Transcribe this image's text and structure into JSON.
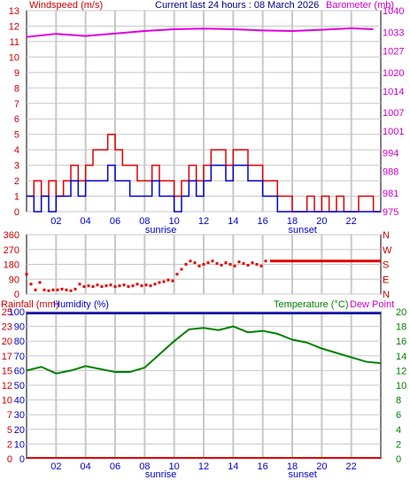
{
  "header": {
    "left_label": "Windspeed (m/s)",
    "center_label": "Current last 24 hours : 08 March 2026",
    "right_label": "Barometer (mb)"
  },
  "colors": {
    "wind_gust": "#e00000",
    "wind_avg": "#0000cc",
    "barometer": "#e000e0",
    "direction": "#e00000",
    "rain": "#e00000",
    "humidity": "#0000a0",
    "temperature": "#008000",
    "dewpoint": "#e000e0",
    "grid": "#c8c8c8",
    "blue_text": "#0000cc",
    "magenta_text": "#cc00cc",
    "green_text": "#008000",
    "red_text": "#cc0000"
  },
  "x_axis": {
    "range": [
      0,
      24
    ],
    "ticks": [
      2,
      4,
      6,
      8,
      10,
      12,
      14,
      16,
      18,
      20,
      22
    ],
    "tick_labels": [
      "02",
      "04",
      "06",
      "08",
      "10",
      "12",
      "14",
      "16",
      "18",
      "20",
      "22"
    ],
    "sunrise_label": "sunrise",
    "sunset_label": "sunset",
    "sunrise_hour": 9.1,
    "sunset_hour": 18.7
  },
  "chart_data": [
    {
      "type": "line",
      "panel": "wind-barometer",
      "left_axis": {
        "ylim": [
          0,
          13
        ],
        "ticks": [
          "0",
          "1",
          "2",
          "3",
          "4",
          "5",
          "6",
          "7",
          "8",
          "9",
          "10",
          "11",
          "12",
          "13"
        ]
      },
      "right_axis": {
        "ylim": [
          975,
          1040
        ],
        "ticks": [
          "975",
          "981",
          "988",
          "994",
          "1001",
          "1007",
          "1014",
          "1020",
          "1027",
          "1033",
          "1040"
        ]
      },
      "series": [
        {
          "name": "Windspeed",
          "style": "gust",
          "x": [
            0,
            0.5,
            1,
            1.5,
            2,
            2.5,
            3,
            3.5,
            4,
            4.5,
            5,
            5.5,
            6,
            6.5,
            7,
            7.5,
            8,
            8.5,
            9,
            9.5,
            10,
            10.5,
            11,
            11.5,
            12,
            12.5,
            13,
            13.5,
            14,
            14.5,
            15,
            15.5,
            16,
            16.5,
            17,
            17.5,
            18,
            18.5,
            19,
            19.5,
            20,
            20.5,
            21,
            21.5,
            22,
            22.5,
            23,
            23.5
          ],
          "values": [
            1,
            2,
            1,
            2,
            1,
            2,
            3,
            2,
            3,
            4,
            4,
            5,
            4,
            3,
            3,
            2,
            2,
            3,
            2,
            2,
            1,
            2,
            3,
            2,
            3,
            4,
            4,
            3,
            4,
            4,
            3,
            3,
            2,
            2,
            1,
            1,
            0,
            0,
            1,
            0,
            1,
            0,
            1,
            0,
            0,
            1,
            1,
            0
          ]
        },
        {
          "name": "Windspeed",
          "style": "average",
          "x": [
            0,
            0.5,
            1,
            1.5,
            2,
            2.5,
            3,
            3.5,
            4,
            4.5,
            5,
            5.5,
            6,
            6.5,
            7,
            7.5,
            8,
            8.5,
            9,
            9.5,
            10,
            10.5,
            11,
            11.5,
            12,
            12.5,
            13,
            13.5,
            14,
            14.5,
            15,
            15.5,
            16,
            16.5,
            17,
            17.5,
            18,
            18.5,
            19,
            19.5,
            20,
            20.5,
            21,
            21.5,
            22,
            22.5,
            23,
            23.5
          ],
          "values": [
            1,
            0,
            1,
            0,
            1,
            1,
            2,
            1,
            2,
            2,
            2,
            3,
            2,
            2,
            1,
            1,
            1,
            2,
            1,
            1,
            0,
            1,
            2,
            1,
            2,
            3,
            3,
            2,
            3,
            3,
            2,
            2,
            1,
            1,
            0,
            0,
            0,
            0,
            0,
            0,
            0,
            0,
            0,
            0,
            0,
            0,
            0,
            0
          ]
        },
        {
          "name": "Barometer",
          "x": [
            0,
            2,
            4,
            6,
            8,
            10,
            12,
            14,
            16,
            18,
            20,
            22,
            23.5
          ],
          "values": [
            1031.5,
            1032.5,
            1031.8,
            1032.6,
            1033.4,
            1034.0,
            1034.2,
            1034.0,
            1033.6,
            1033.4,
            1033.8,
            1034.3,
            1034.0
          ]
        }
      ]
    },
    {
      "type": "scatter",
      "panel": "wind-direction",
      "left_axis": {
        "ylim": [
          0,
          360
        ],
        "ticks": [
          "0",
          "90",
          "180",
          "270",
          "360"
        ]
      },
      "right_axis": {
        "labels": [
          "N",
          "E",
          "S",
          "W",
          "N"
        ]
      },
      "series": [
        {
          "name": "Direction",
          "x": [
            0,
            0.3,
            0.6,
            0.9,
            1.2,
            1.5,
            1.8,
            2.1,
            2.4,
            2.7,
            3,
            3.3,
            3.6,
            3.9,
            4.2,
            4.5,
            4.8,
            5.1,
            5.4,
            5.7,
            6,
            6.3,
            6.6,
            6.9,
            7.2,
            7.5,
            7.8,
            8.1,
            8.4,
            8.7,
            9,
            9.3,
            9.6,
            9.9,
            10.2,
            10.5,
            10.8,
            11.1,
            11.4,
            11.7,
            12,
            12.3,
            12.6,
            12.9,
            13.2,
            13.5,
            13.8,
            14.1,
            14.4,
            14.7,
            15,
            15.3,
            15.6,
            15.9,
            16.2
          ],
          "values": [
            120,
            60,
            25,
            70,
            25,
            20,
            25,
            25,
            30,
            25,
            20,
            30,
            60,
            45,
            50,
            45,
            55,
            45,
            50,
            55,
            45,
            50,
            55,
            45,
            50,
            60,
            50,
            55,
            50,
            60,
            70,
            75,
            85,
            80,
            120,
            150,
            180,
            200,
            190,
            170,
            180,
            190,
            200,
            185,
            175,
            190,
            180,
            170,
            195,
            185,
            175,
            190,
            180,
            170,
            200
          ]
        },
        {
          "name": "Direction",
          "style": "steady",
          "x": [
            16.5,
            24
          ],
          "values": [
            200,
            200
          ]
        }
      ]
    },
    {
      "type": "line",
      "panel": "rain-humidity-temperature",
      "left_axis": {
        "rain_ticks": [
          "0",
          "2",
          "5",
          "7",
          "10",
          "12",
          "15",
          "17",
          "20",
          "23",
          "25"
        ],
        "humidity_ticks": [
          "0",
          "10",
          "20",
          "30",
          "40",
          "50",
          "60",
          "70",
          "80",
          "90",
          "100"
        ]
      },
      "right_axis": {
        "ylim": [
          0,
          20
        ],
        "ticks": [
          "0",
          "2",
          "4",
          "6",
          "8",
          "10",
          "12",
          "14",
          "16",
          "18",
          "20"
        ]
      },
      "series": [
        {
          "name": "Temperature",
          "x": [
            0,
            1,
            2,
            3,
            4,
            5,
            6,
            7,
            8,
            9,
            10,
            11,
            12,
            13,
            14,
            15,
            16,
            17,
            18,
            19,
            20,
            21,
            22,
            23,
            24
          ],
          "values": [
            12.0,
            12.5,
            11.6,
            12.0,
            12.6,
            12.2,
            11.8,
            11.8,
            12.4,
            14.2,
            16.0,
            17.6,
            17.8,
            17.5,
            18.0,
            17.2,
            17.4,
            17.0,
            16.2,
            15.8,
            15.0,
            14.4,
            13.8,
            13.2,
            13.0
          ]
        },
        {
          "name": "Humidity",
          "x": [
            0,
            24
          ],
          "values": [
            99,
            99
          ]
        },
        {
          "name": "Rainfall",
          "x": [
            0,
            24
          ],
          "values": [
            0,
            0
          ]
        }
      ]
    }
  ],
  "panel2_labels": {
    "rain_title": "Rainfall (mm)",
    "humidity_title": "Humidity (%)",
    "temperature_title": "Temperature (°C)",
    "dewpoint_title": "Dew Point"
  }
}
